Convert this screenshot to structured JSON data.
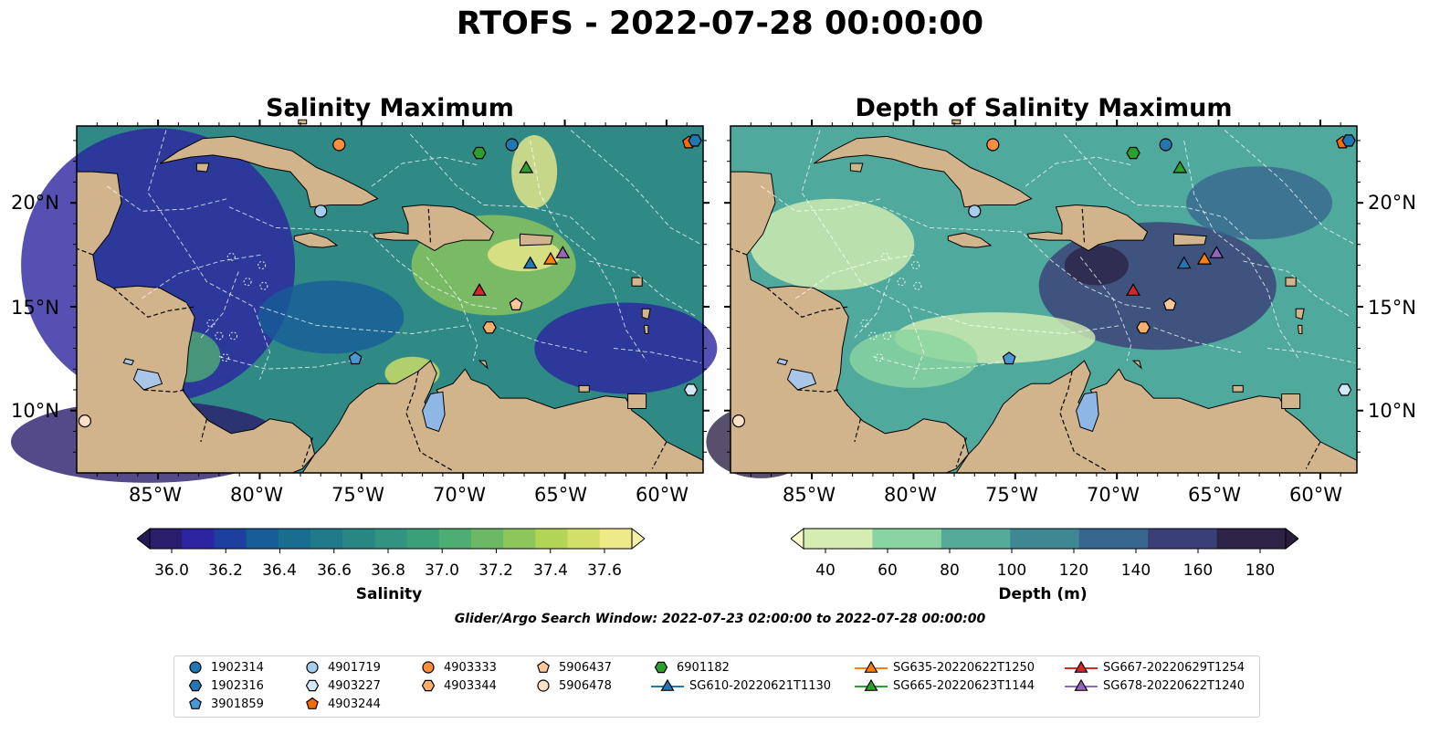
{
  "suptitle": "RTOFS - 2022-07-28 00:00:00",
  "panels": [
    {
      "title": "Salinity Maximum",
      "colormap": "haline",
      "background": "#2f8a86"
    },
    {
      "title": "Depth of Salinity Maximum",
      "colormap": "deep",
      "background": "#4fa99d"
    }
  ],
  "lon_ticks": [
    "85°W",
    "80°W",
    "75°W",
    "70°W",
    "65°W",
    "60°W"
  ],
  "lat_ticks": [
    "20°N",
    "15°N",
    "10°N"
  ],
  "colorbars": [
    {
      "label": "Salinity",
      "ticks": [
        "36.0",
        "36.2",
        "36.4",
        "36.6",
        "36.8",
        "37.0",
        "37.2",
        "37.4",
        "37.6"
      ],
      "colors": [
        "#2a1d6c",
        "#2c24a0",
        "#1d3fa0",
        "#165c97",
        "#196d8f",
        "#207a89",
        "#288783",
        "#309480",
        "#3ba07a",
        "#4fac72",
        "#6bb966",
        "#8ec65c",
        "#b3d557",
        "#d2e166",
        "#eeea8a"
      ],
      "under": "#231a55",
      "over": "#f5f0a5"
    },
    {
      "label": "Depth (m)",
      "ticks": [
        "40",
        "60",
        "80",
        "100",
        "120",
        "140",
        "160",
        "180"
      ],
      "colors": [
        "#d3edb2",
        "#89d4a0",
        "#55ab9a",
        "#3f8893",
        "#37678f",
        "#3a3f78",
        "#2d2347"
      ],
      "under": "#fdfdcc",
      "over": "#281c3a"
    }
  ],
  "search_window": "Glider/Argo Search Window: 2022-07-23 02:00:00 to 2022-07-28 00:00:00",
  "legend": [
    {
      "label": "1902314",
      "marker": "circle",
      "color": "#1f77b4"
    },
    {
      "label": "1902316",
      "marker": "hexagon",
      "color": "#1f77b4"
    },
    {
      "label": "3901859",
      "marker": "pentagon",
      "color": "#4b97d6"
    },
    {
      "label": "4901719",
      "marker": "circle",
      "color": "#a6cdee"
    },
    {
      "label": "4903227",
      "marker": "hexagon",
      "color": "#d4e8f8"
    },
    {
      "label": "4903244",
      "marker": "pentagon",
      "color": "#f36a06"
    },
    {
      "label": "4903333",
      "marker": "circle",
      "color": "#fd8d3c"
    },
    {
      "label": "4903344",
      "marker": "hexagon",
      "color": "#fdae6b"
    },
    {
      "label": "5906437",
      "marker": "pentagon",
      "color": "#fdc79a"
    },
    {
      "label": "5906478",
      "marker": "circle",
      "color": "#fde0c5"
    },
    {
      "label": "6901182",
      "marker": "hexagon",
      "color": "#2ca02c"
    },
    {
      "label": "SG610-20220621T1130",
      "marker": "triangle",
      "color": "#1f77b4"
    },
    {
      "label": "SG635-20220622T1250",
      "marker": "triangle",
      "color": "#ff7f0e"
    },
    {
      "label": "SG665-20220623T1144",
      "marker": "triangle",
      "color": "#2ca02c"
    },
    {
      "label": "SG667-20220629T1254",
      "marker": "triangle",
      "color": "#d62728"
    },
    {
      "label": "SG678-20220622T1240",
      "marker": "triangle",
      "color": "#9467bd"
    }
  ],
  "observations": [
    {
      "id": "4903333",
      "lon": -76.1,
      "lat": 22.8
    },
    {
      "id": "1902314",
      "lon": -67.6,
      "lat": 22.8
    },
    {
      "id": "6901182",
      "lon": -69.2,
      "lat": 22.4
    },
    {
      "id": "SG665-20220623T1144",
      "lon": -66.9,
      "lat": 21.7
    },
    {
      "id": "4903244",
      "lon": -58.9,
      "lat": 22.9
    },
    {
      "id": "1902316",
      "lon": -58.6,
      "lat": 23.0
    },
    {
      "id": "4901719",
      "lon": -77.0,
      "lat": 19.6
    },
    {
      "id": "SG610-20220621T1130",
      "lon": -66.7,
      "lat": 17.1
    },
    {
      "id": "SG635-20220622T1250",
      "lon": -65.7,
      "lat": 17.3
    },
    {
      "id": "SG678-20220622T1240",
      "lon": -65.1,
      "lat": 17.6
    },
    {
      "id": "SG667-20220629T1254",
      "lon": -69.2,
      "lat": 15.8
    },
    {
      "id": "5906437",
      "lon": -67.4,
      "lat": 15.1
    },
    {
      "id": "4903344",
      "lon": -68.7,
      "lat": 14.0
    },
    {
      "id": "3901859",
      "lon": -75.3,
      "lat": 12.5
    },
    {
      "id": "4903227",
      "lon": -58.8,
      "lat": 11.0
    },
    {
      "id": "5906478",
      "lon": -88.6,
      "lat": 9.5
    }
  ]
}
